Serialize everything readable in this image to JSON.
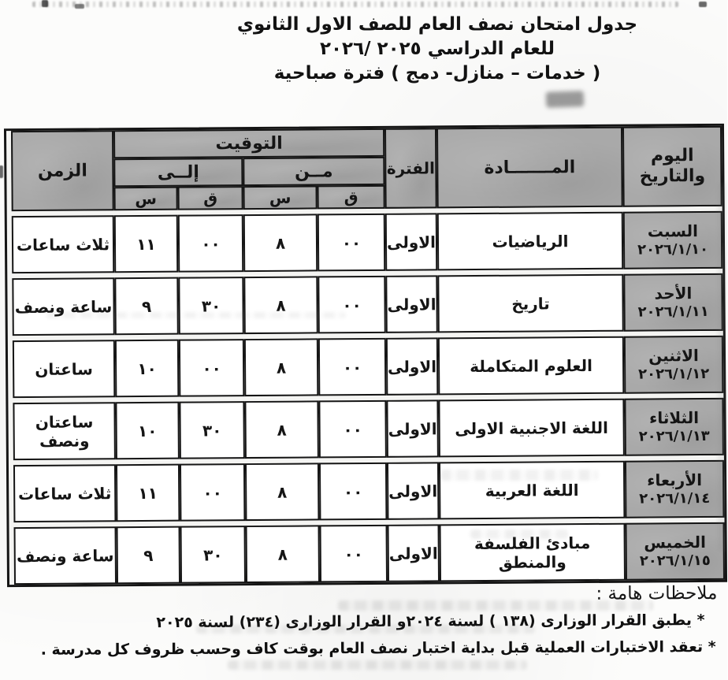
{
  "document": {
    "title_line1": "جدول امتحان نصف العام  للصف الاول الثانوي",
    "title_line2": "للعام الدراسي ٢٠٢٥ /٢٠٢٦",
    "title_line3": "( خدمات – منازل- دمج ) فترة صباحية"
  },
  "table": {
    "header": {
      "day_date_line1": "اليوم",
      "day_date_line2": "والتاريخ",
      "subject": "المـــــــادة",
      "period": "الفترة",
      "timing": "التوقيت",
      "from": "مــن",
      "to": "إلــى",
      "hours_abbr": "س",
      "minutes_abbr": "ق",
      "duration": "الزمن"
    },
    "rows": [
      {
        "day": "السبت",
        "date": "٢٠٢٦/١/١٠",
        "subject": "الرياضيات",
        "period": "الاولى",
        "from_m": "٠٠",
        "from_h": "٨",
        "to_m": "٠٠",
        "to_h": "١١",
        "duration": "ثلاث ساعات"
      },
      {
        "day": "الأحد",
        "date": "٢٠٢٦/١/١١",
        "subject": "تاريخ",
        "period": "الاولى",
        "from_m": "٠٠",
        "from_h": "٨",
        "to_m": "٣٠",
        "to_h": "٩",
        "duration": "ساعة ونصف"
      },
      {
        "day": "الاثنين",
        "date": "٢٠٢٦/١/١٢",
        "subject": "العلوم المتكاملة",
        "period": "الاولى",
        "from_m": "٠٠",
        "from_h": "٨",
        "to_m": "٠٠",
        "to_h": "١٠",
        "duration": "ساعتان"
      },
      {
        "day": "الثلاثاء",
        "date": "٢٠٢٦/١/١٣",
        "subject": "اللغة الاجنبية الاولى",
        "period": "الاولى",
        "from_m": "٠٠",
        "from_h": "٨",
        "to_m": "٣٠",
        "to_h": "١٠",
        "duration": "ساعتان ونصف"
      },
      {
        "day": "الأربعاء",
        "date": "٢٠٢٦/١/١٤",
        "subject": "اللغة العربية",
        "period": "الاولى",
        "from_m": "٠٠",
        "from_h": "٨",
        "to_m": "٠٠",
        "to_h": "١١",
        "duration": "ثلاث ساعات"
      },
      {
        "day": "الخميس",
        "date": "٢٠٢٦/١/١٥",
        "subject": "مبادئ الفلسفة والمنطق",
        "period": "الاولى",
        "from_m": "٠٠",
        "from_h": "٨",
        "to_m": "٣٠",
        "to_h": "٩",
        "duration": "ساعة ونصف"
      }
    ]
  },
  "notes": {
    "heading": "ملاحظات هامة :",
    "items": [
      "* يطبق القرار الوزارى (١٣٨ ) لسنة ٢٠٢٤و القرار الوزارى (٢٣٤) لسنة ٢٠٢٥",
      "* تعقد الاختبارات العملية قبل بداية  اختبار نصف العام بوقت كاف وحسب ظروف كل مدرسة ."
    ]
  },
  "colors": {
    "header_fill": "#a9a9a9",
    "ink": "#151515"
  }
}
